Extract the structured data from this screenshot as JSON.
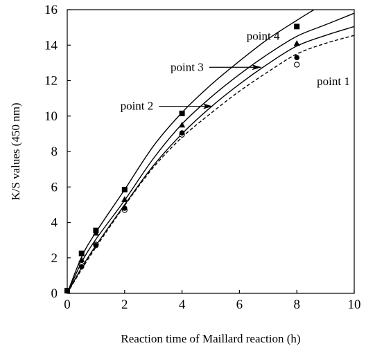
{
  "chart_data": {
    "type": "scatter",
    "xlabel": "Reaction time of Maillard reaction (h)",
    "ylabel": "K/S values (450 nm)",
    "xlim": [
      0,
      10
    ],
    "ylim": [
      0,
      16
    ],
    "x_ticks": [
      "0",
      "2",
      "4",
      "6",
      "8",
      "10"
    ],
    "y_ticks": [
      "0",
      "2",
      "4",
      "6",
      "8",
      "10",
      "12",
      "14",
      "16"
    ],
    "grid": false,
    "series": [
      {
        "name": "point 1",
        "marker": "open-circle",
        "line": "dashed",
        "points": [
          [
            0,
            0.15
          ],
          [
            0.5,
            1.6
          ],
          [
            1,
            2.75
          ],
          [
            2,
            4.7
          ],
          [
            4,
            8.95
          ],
          [
            8,
            12.9
          ]
        ],
        "curve": [
          [
            0,
            0
          ],
          [
            0.5,
            1.35
          ],
          [
            1,
            2.6
          ],
          [
            2,
            4.95
          ],
          [
            3,
            7.1
          ],
          [
            4,
            8.8
          ],
          [
            5,
            10.15
          ],
          [
            6,
            11.4
          ],
          [
            7,
            12.5
          ],
          [
            8,
            13.5
          ],
          [
            9,
            14.1
          ],
          [
            10,
            14.55
          ]
        ]
      },
      {
        "name": "point 2",
        "marker": "filled-circle",
        "line": "solid",
        "points": [
          [
            0,
            0.15
          ],
          [
            0.5,
            1.5
          ],
          [
            1,
            2.7
          ],
          [
            2,
            4.8
          ],
          [
            4,
            9.05
          ],
          [
            8,
            13.3
          ]
        ],
        "curve": [
          [
            0,
            0
          ],
          [
            0.5,
            1.45
          ],
          [
            1,
            2.7
          ],
          [
            2,
            5.0
          ],
          [
            3,
            7.2
          ],
          [
            4,
            9.0
          ],
          [
            5,
            10.5
          ],
          [
            6,
            11.8
          ],
          [
            7,
            12.95
          ],
          [
            8,
            13.95
          ],
          [
            9,
            14.55
          ],
          [
            10,
            15.05
          ]
        ]
      },
      {
        "name": "point 3",
        "marker": "filled-triangle",
        "line": "solid",
        "points": [
          [
            0,
            0.15
          ],
          [
            0.5,
            1.9
          ],
          [
            1,
            3.4
          ],
          [
            2,
            5.3
          ],
          [
            4,
            9.5
          ],
          [
            8,
            14.1
          ]
        ],
        "curve": [
          [
            0,
            0
          ],
          [
            0.5,
            1.75
          ],
          [
            1,
            3.05
          ],
          [
            2,
            5.25
          ],
          [
            3,
            7.6
          ],
          [
            4,
            9.55
          ],
          [
            5,
            11.05
          ],
          [
            6,
            12.35
          ],
          [
            7,
            13.5
          ],
          [
            8,
            14.5
          ],
          [
            9,
            15.15
          ],
          [
            10,
            15.8
          ]
        ]
      },
      {
        "name": "point 4",
        "marker": "filled-square",
        "line": "solid",
        "points": [
          [
            0,
            0.15
          ],
          [
            0.5,
            2.25
          ],
          [
            1,
            3.55
          ],
          [
            2,
            5.85
          ],
          [
            4,
            10.15
          ],
          [
            8,
            15.05
          ]
        ],
        "curve": [
          [
            0,
            0
          ],
          [
            0.5,
            2.05
          ],
          [
            1,
            3.45
          ],
          [
            2,
            5.85
          ],
          [
            3,
            8.3
          ],
          [
            4,
            10.2
          ],
          [
            5,
            11.75
          ],
          [
            6,
            13.1
          ],
          [
            7,
            14.35
          ],
          [
            8,
            15.4
          ],
          [
            8.6,
            16.0
          ]
        ]
      }
    ],
    "annotations": [
      {
        "text": "point 4",
        "x": 6.25,
        "y": 14.5,
        "arrow_to": null
      },
      {
        "text": "point 3",
        "x": 3.6,
        "y": 12.75,
        "arrow_to": [
          6.75,
          12.75
        ]
      },
      {
        "text": "point 2",
        "x": 1.85,
        "y": 10.55,
        "arrow_to": [
          5.05,
          10.55
        ]
      },
      {
        "text": "point 1",
        "x": 8.7,
        "y": 11.95,
        "arrow_to": null
      }
    ]
  }
}
